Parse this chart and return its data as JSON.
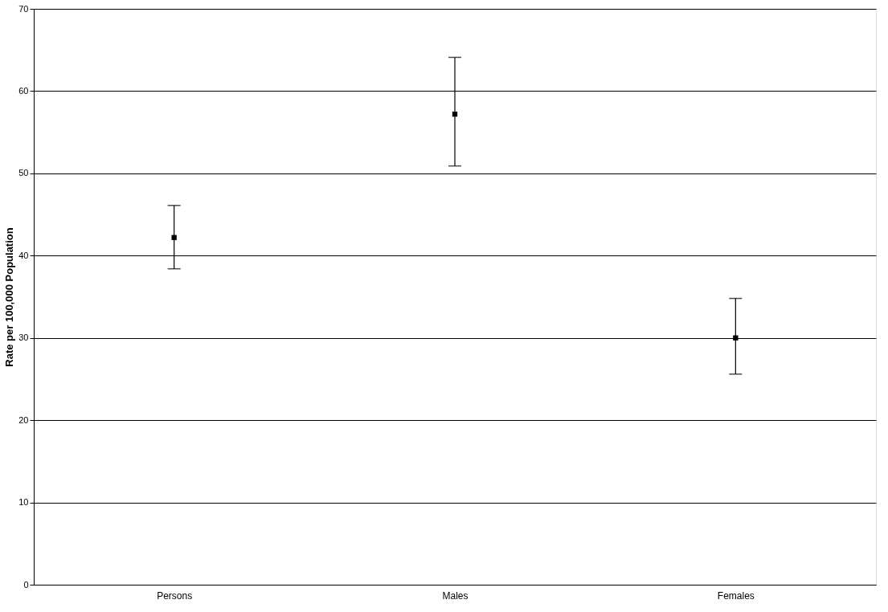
{
  "chart_data": {
    "type": "scatter",
    "ylabel": "Rate per 100,000 Population",
    "categories": [
      "Persons",
      "Males",
      "Females"
    ],
    "series": [
      {
        "color": "#000000",
        "values": [
          42.2,
          57.2,
          30.0
        ],
        "errors": [
          [
            38.4,
            46.1
          ],
          [
            50.9,
            64.1
          ],
          [
            25.6,
            34.8
          ]
        ]
      }
    ],
    "ylim": [
      0,
      70
    ],
    "yticks": [
      0,
      10,
      20,
      30,
      40,
      50,
      60,
      70
    ],
    "grid": "y",
    "marker": "square"
  }
}
